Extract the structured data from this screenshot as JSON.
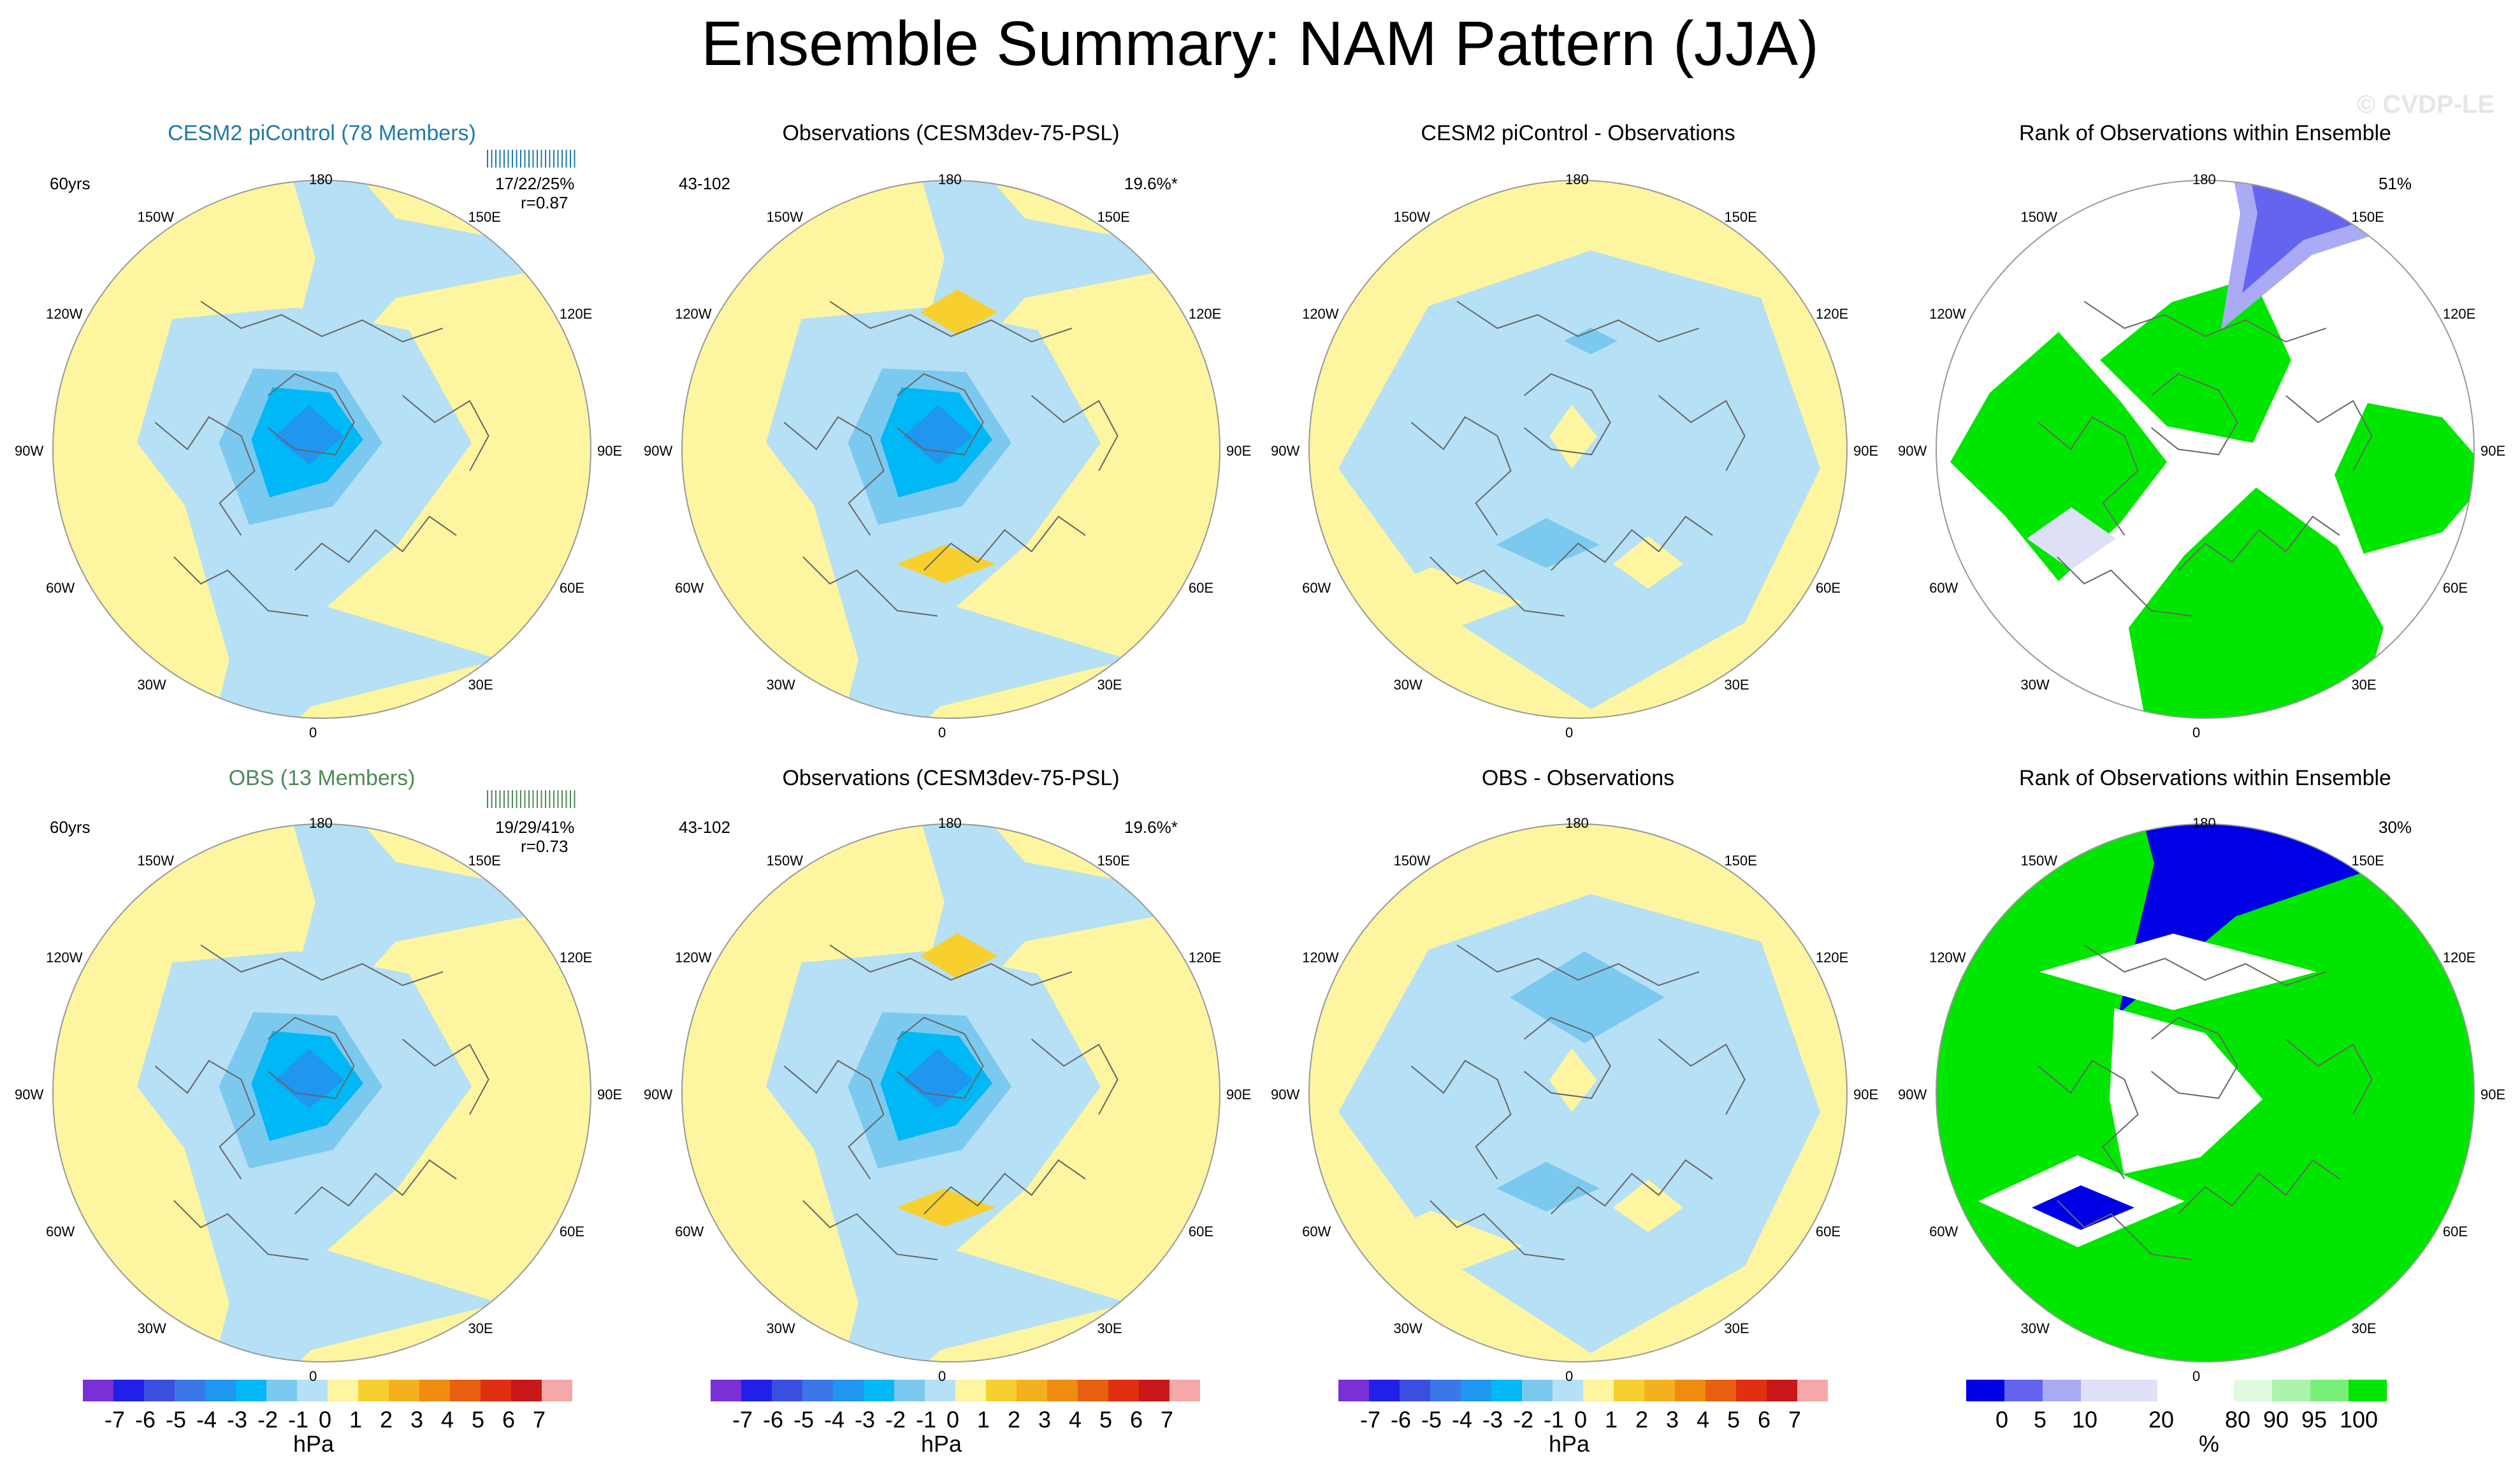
{
  "title": "Ensemble Summary: NAM Pattern (JJA)",
  "watermark": "© CVDP-LE",
  "colors": {
    "diverging": [
      "#7b2fd6",
      "#2020e8",
      "#3a4fe0",
      "#3a78e8",
      "#1f96f0",
      "#00b8f5",
      "#7cc9ef",
      "#b5e0f5",
      "#fdf5a0",
      "#f7d030",
      "#f5b020",
      "#f08c10",
      "#e86010",
      "#e03010",
      "#c81818",
      "#f5a8a8"
    ],
    "rank": [
      "#0000e6",
      "#6464f0",
      "#aaaaf5",
      "#dde0f7",
      "#ffffff",
      "#e0fae0",
      "#aaf5aa",
      "#78f078",
      "#00e600"
    ],
    "land_line": "#666666",
    "obs_title": "#4f8a55",
    "model_title": "#1f7aa8"
  },
  "rows": [
    {
      "panels": [
        {
          "title": "CESM2 piControl (78 Members)",
          "left": "60yrs",
          "right_line1": "17/22/25%",
          "right_line2": "r=0.87",
          "kind": "model"
        },
        {
          "title": "Observations (CESM3dev-75-PSL)",
          "left": "43-102",
          "right_line1": "19.6%*",
          "kind": "obs"
        },
        {
          "title": "CESM2 piControl - Observations",
          "kind": "diff"
        },
        {
          "title": "Rank of Observations within Ensemble",
          "right_line1": "51%",
          "kind": "rank"
        }
      ]
    },
    {
      "panels": [
        {
          "title": "OBS (13 Members)",
          "left": "60yrs",
          "right_line1": "19/29/41%",
          "right_line2": "r=0.73",
          "kind": "model"
        },
        {
          "title": "Observations (CESM3dev-75-PSL)",
          "left": "43-102",
          "right_line1": "19.6%*",
          "kind": "obs"
        },
        {
          "title": "OBS - Observations",
          "kind": "diff"
        },
        {
          "title": "Rank of Observations within Ensemble",
          "right_line1": "30%",
          "kind": "rank"
        }
      ]
    }
  ],
  "lon_labels": {
    "top": "180",
    "bottom": "0",
    "left": "90W",
    "right": "90E",
    "ul1": "150W",
    "ul2": "120W",
    "ur1": "150E",
    "ur2": "120E",
    "ll1": "60W",
    "ll2": "30W",
    "lr1": "60E",
    "lr2": "30E"
  },
  "colorbars": {
    "hpa_labels": [
      "-7",
      "-6",
      "-5",
      "-4",
      "-3",
      "-2",
      "-1",
      "0",
      "1",
      "2",
      "3",
      "4",
      "5",
      "6",
      "7"
    ],
    "hpa_unit": "hPa",
    "rank_labels": [
      "0",
      "5",
      "10",
      "20",
      "80",
      "90",
      "95",
      "100"
    ],
    "rank_unit": "%"
  },
  "chart_data": {
    "type": "heatmap",
    "title": "Ensemble Summary: NAM Pattern (JJA)",
    "projection": "north polar stereographic",
    "units": "hPa",
    "levels": [
      -7,
      -6,
      -5,
      -4,
      -3,
      -2,
      -1,
      0,
      1,
      2,
      3,
      4,
      5,
      6,
      7
    ],
    "rank_levels": [
      0,
      5,
      10,
      20,
      80,
      90,
      95,
      100
    ],
    "stats": {
      "CESM2 piControl": {
        "members": 78,
        "years": "60yrs",
        "pct": "17/22/25%",
        "r": 0.87,
        "rank_pct": "51%"
      },
      "OBS": {
        "members": 13,
        "years": "60yrs",
        "pct": "19/29/41%",
        "r": 0.73,
        "rank_pct": "30%"
      },
      "Observations": {
        "years": "43-102",
        "pct": "19.6%*"
      }
    }
  }
}
